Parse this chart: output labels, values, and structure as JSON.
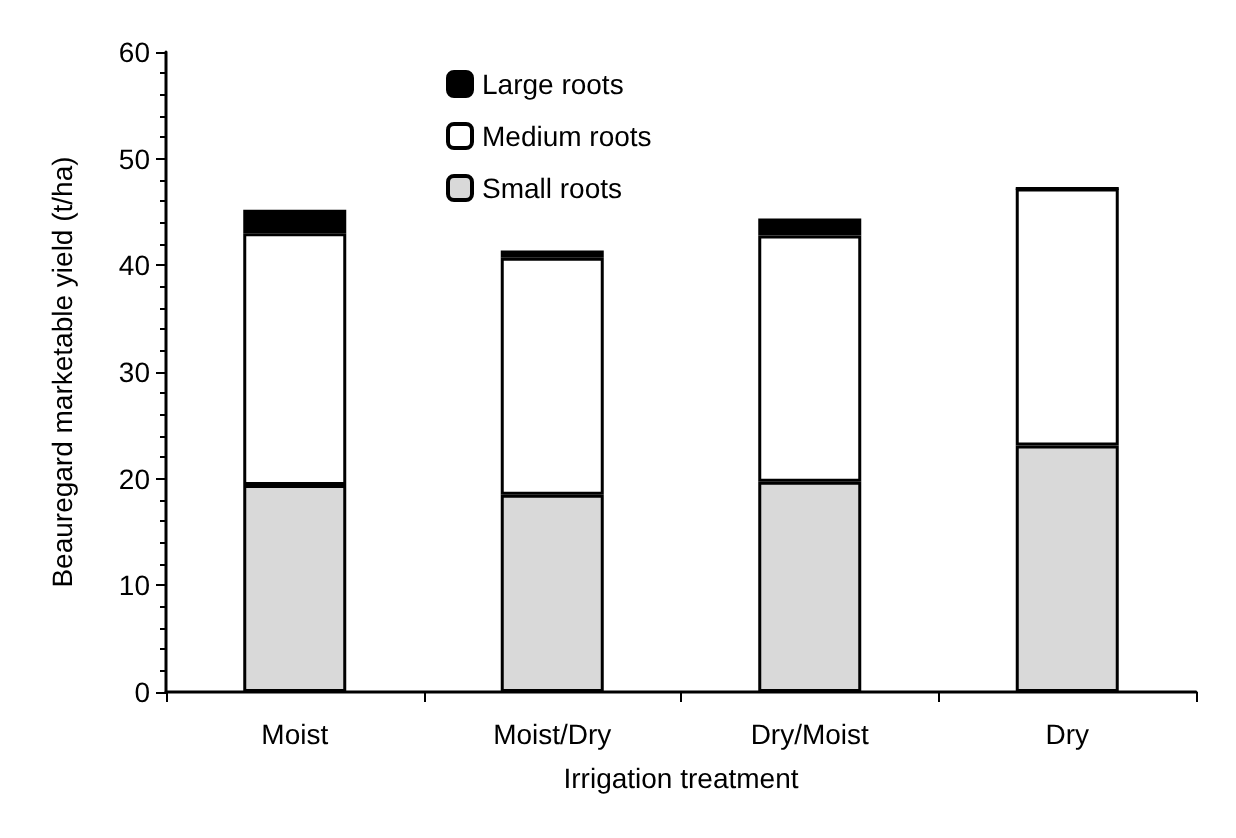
{
  "chart_data": {
    "type": "bar",
    "stacked": true,
    "xlabel": "Irrigation treatment",
    "ylabel": "Beauregard marketable yield (t/ha)",
    "categories": [
      "Moist",
      "Moist/Dry",
      "Dry/Moist",
      "Dry"
    ],
    "series": [
      {
        "name": "Small roots",
        "color": "#d9d9d9",
        "values": [
          19.4,
          18.5,
          19.7,
          23.1
        ]
      },
      {
        "name": "Medium roots",
        "color": "#ffffff",
        "values": [
          23.6,
          22.2,
          23.1,
          24.1
        ]
      },
      {
        "name": "Large roots",
        "color": "#000000",
        "values": [
          2.2,
          0.7,
          1.6,
          0
        ]
      }
    ],
    "ylim": [
      0,
      60
    ],
    "yticks": [
      0,
      10,
      20,
      30,
      40,
      50,
      60
    ],
    "grid": false,
    "legend": "top left"
  }
}
